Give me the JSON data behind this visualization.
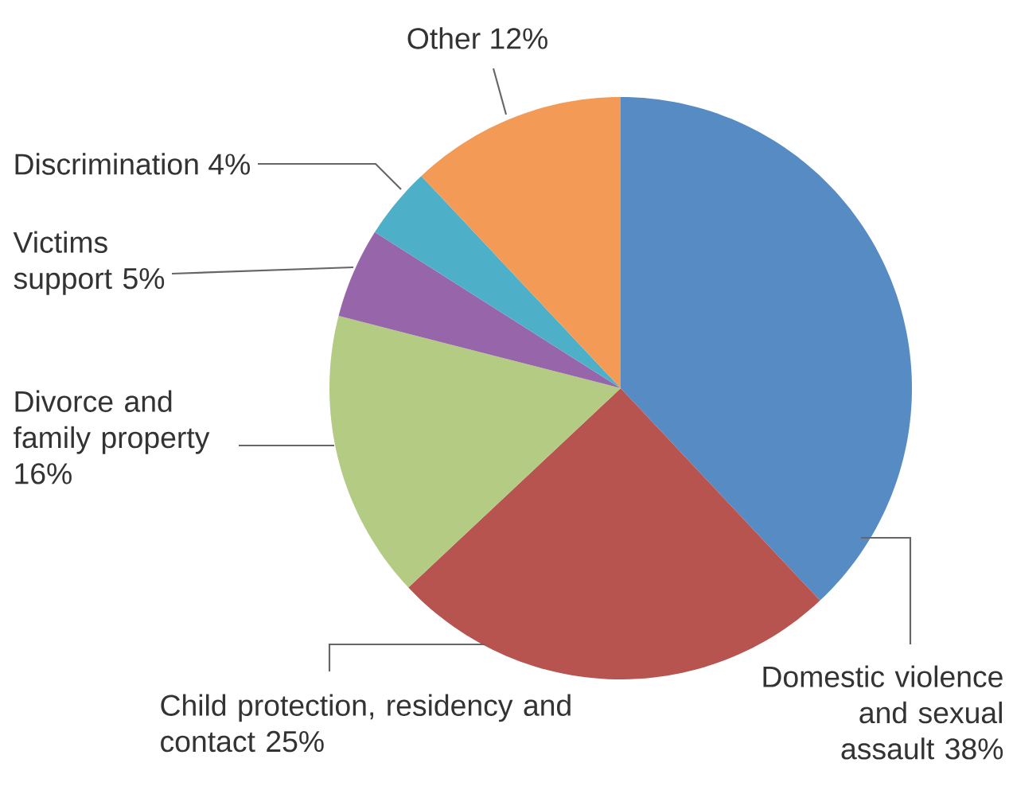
{
  "chart_data": {
    "type": "pie",
    "categories": [
      "Domestic violence and sexual assault",
      "Child protection, residency and contact",
      "Divorce and family property",
      "Victims support",
      "Discrimination",
      "Other"
    ],
    "values": [
      38,
      25,
      16,
      5,
      4,
      12
    ],
    "value_labels": [
      "38%",
      "25%",
      "16%",
      "5%",
      "4%",
      "12%"
    ],
    "colors": [
      "#568bc3",
      "#b85450",
      "#b4cb83",
      "#9766aa",
      "#4db0c8",
      "#f39a56"
    ]
  }
}
